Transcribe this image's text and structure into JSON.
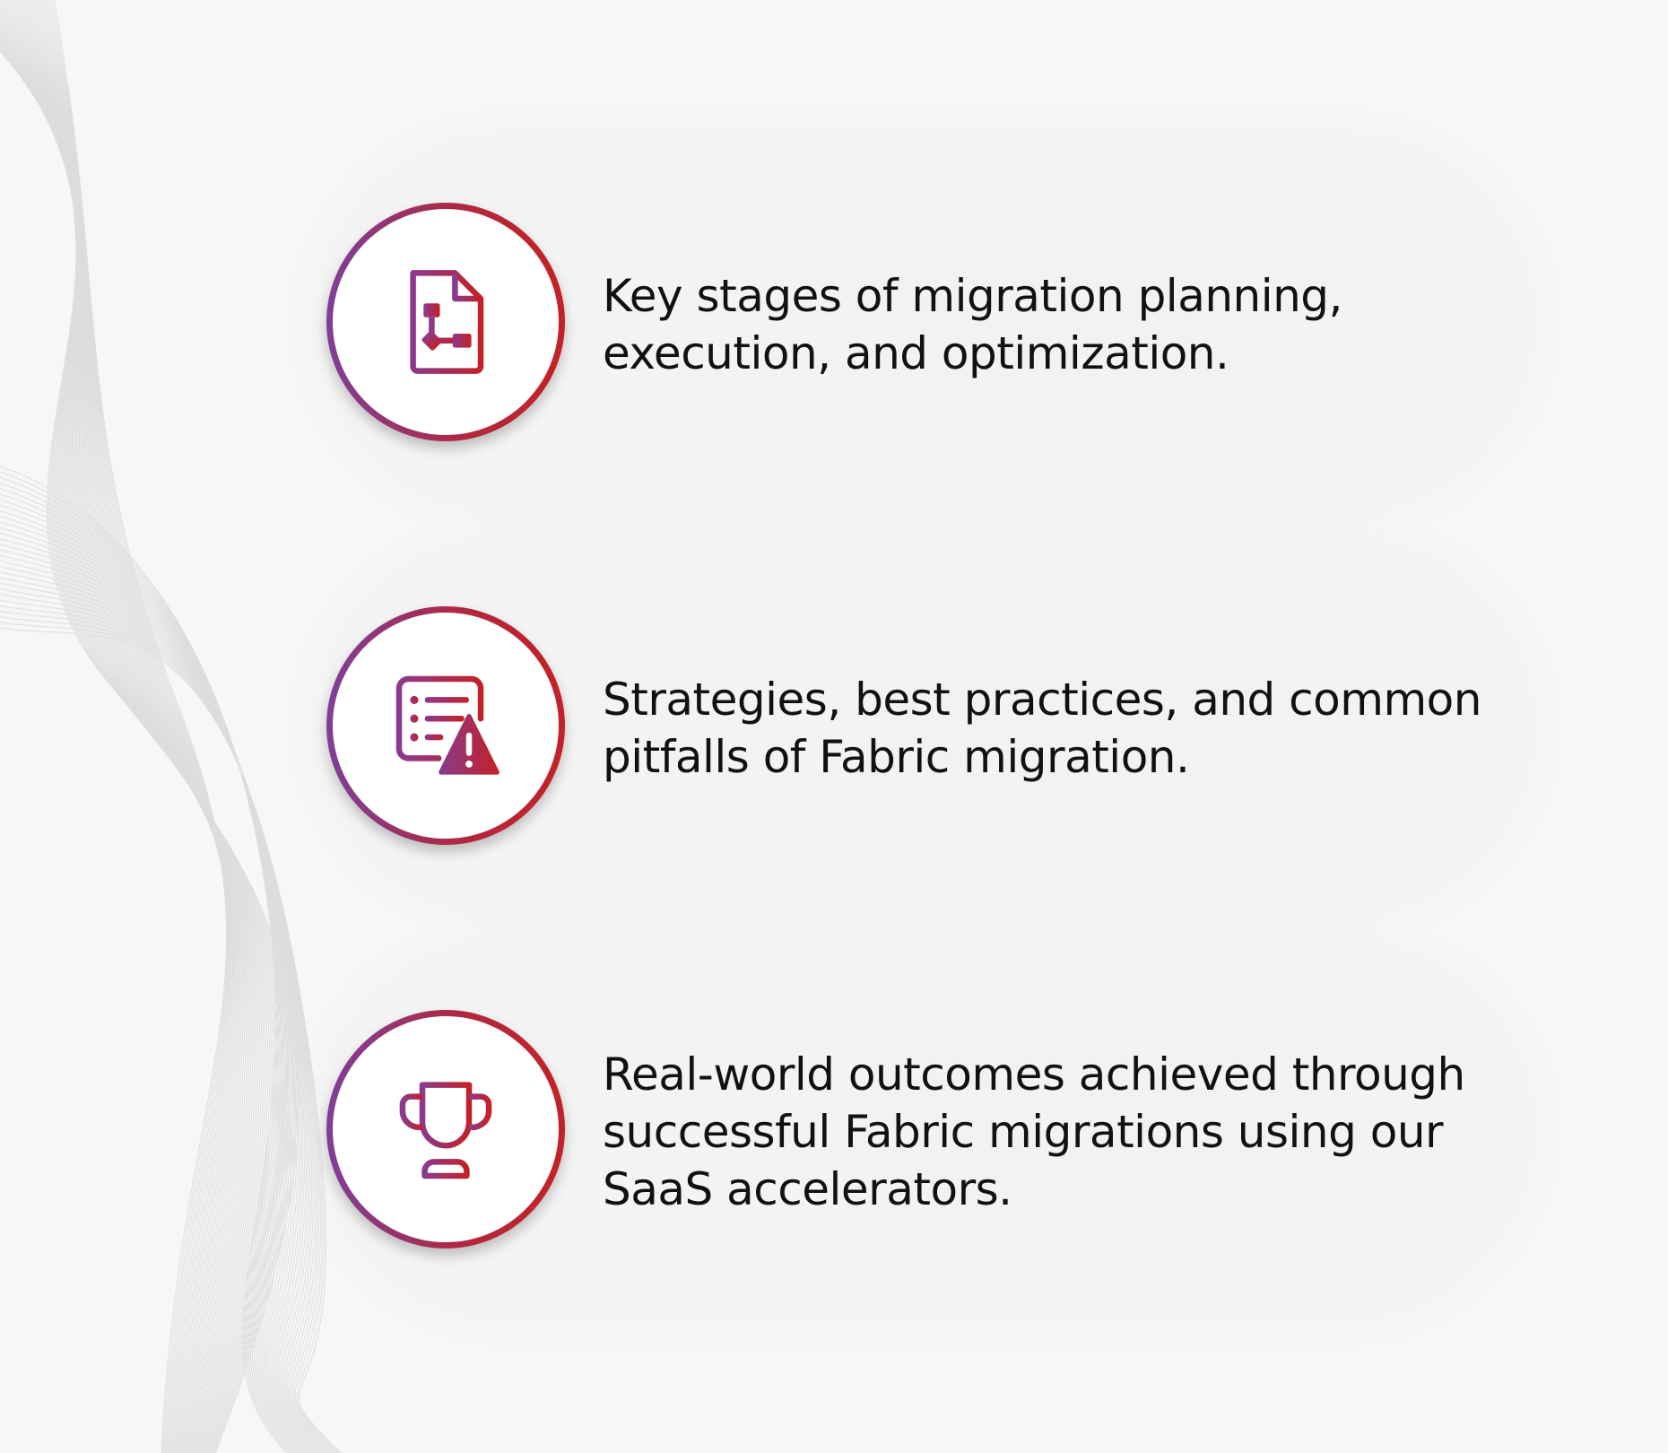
{
  "colors": {
    "gradient_start": "#7f3f98",
    "gradient_end": "#c42127",
    "text": "#111111",
    "background": "#f7f7f7"
  },
  "items": [
    {
      "icon": "flowchart-document-icon",
      "text": "Key stages of migration planning, execution, and optimization."
    },
    {
      "icon": "checklist-warning-icon",
      "text": "Strategies, best practices, and common pitfalls of Fabric migration."
    },
    {
      "icon": "trophy-icon",
      "text": "Real-world outcomes achieved through successful Fabric migrations using our SaaS accelerators."
    }
  ]
}
